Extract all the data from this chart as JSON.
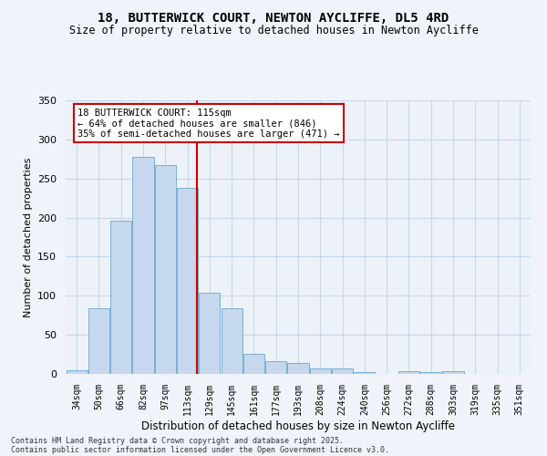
{
  "title1": "18, BUTTERWICK COURT, NEWTON AYCLIFFE, DL5 4RD",
  "title2": "Size of property relative to detached houses in Newton Aycliffe",
  "xlabel": "Distribution of detached houses by size in Newton Aycliffe",
  "ylabel": "Number of detached properties",
  "categories": [
    "34sqm",
    "50sqm",
    "66sqm",
    "82sqm",
    "97sqm",
    "113sqm",
    "129sqm",
    "145sqm",
    "161sqm",
    "177sqm",
    "193sqm",
    "208sqm",
    "224sqm",
    "240sqm",
    "256sqm",
    "272sqm",
    "288sqm",
    "303sqm",
    "319sqm",
    "335sqm",
    "351sqm"
  ],
  "values": [
    5,
    84,
    196,
    278,
    267,
    238,
    104,
    84,
    26,
    16,
    14,
    7,
    7,
    2,
    0,
    3,
    2,
    3,
    0,
    0,
    0
  ],
  "bar_color": "#c5d8ed",
  "bar_edge_color": "#7aafd4",
  "vline_color": "#cc0000",
  "vline_position": 5.43,
  "annotation_text": "18 BUTTERWICK COURT: 115sqm\n← 64% of detached houses are smaller (846)\n35% of semi-detached houses are larger (471) →",
  "annotation_box_color": "#ffffff",
  "annotation_box_edge": "#cc0000",
  "ylim": [
    0,
    350
  ],
  "yticks": [
    0,
    50,
    100,
    150,
    200,
    250,
    300,
    350
  ],
  "grid_color": "#c8d8ea",
  "bg_color": "#edf2f8",
  "footer1": "Contains HM Land Registry data © Crown copyright and database right 2025.",
  "footer2": "Contains public sector information licensed under the Open Government Licence v3.0."
}
